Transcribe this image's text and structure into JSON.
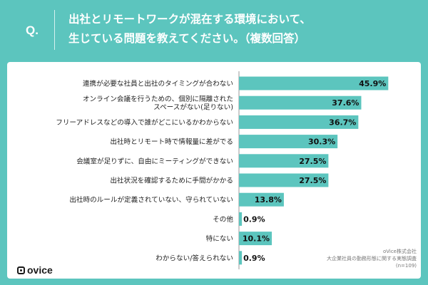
{
  "header": {
    "q_mark": "Q.",
    "question_line1": "出社とリモートワークが混在する環境において、",
    "question_line2": "生じている問題を教えてください。（複数回答）"
  },
  "brand": {
    "logo_text": "ovice"
  },
  "source": {
    "line1": "oVice株式会社",
    "line2": "大企業社員の勤務形態に関する実態調査",
    "line3": "(n=109)"
  },
  "colors": {
    "background": "#5cc5be",
    "bar": "#5cc5be",
    "axis": "#9a9a9a"
  },
  "chart_data": {
    "type": "bar",
    "orientation": "horizontal",
    "categories": [
      [
        "連携が必要な社員と出社のタイミングが合わない"
      ],
      [
        "オンライン会議を行うための、個別に隔離された",
        "スペースがない(足りない)"
      ],
      [
        "フリーアドレスなどの導入で誰がどこにいるかわからない"
      ],
      [
        "出社時とリモート時で情報量に差がでる"
      ],
      [
        "会議室が足りずに、自由にミーティングができない"
      ],
      [
        "出社状況を確認するために手間がかかる"
      ],
      [
        "出社時のルールが定義されていない、守られていない"
      ],
      [
        "その他"
      ],
      [
        "特にない"
      ],
      [
        "わからない/答えられない"
      ]
    ],
    "values": [
      45.9,
      37.6,
      36.7,
      30.3,
      27.5,
      27.5,
      13.8,
      0.9,
      10.1,
      0.9
    ],
    "value_labels": [
      "45.9%",
      "37.6%",
      "36.7%",
      "30.3%",
      "27.5%",
      "27.5%",
      "13.8%",
      "0.9%",
      "10.1%",
      "0.9%"
    ],
    "xlim": [
      0,
      50
    ],
    "grid": false,
    "legend": "none"
  }
}
